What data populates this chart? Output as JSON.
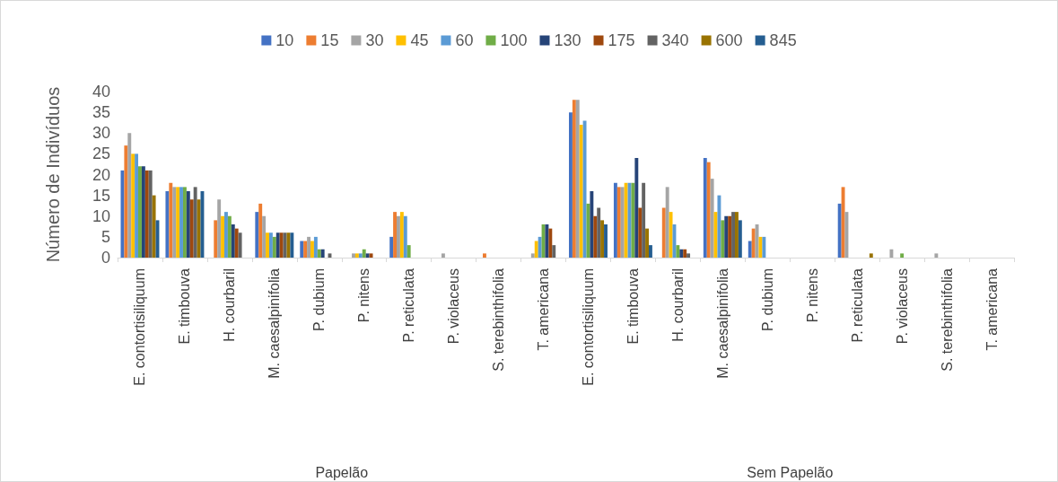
{
  "chart_data": {
    "type": "bar",
    "ylabel": "Número de Indivíduos",
    "categories": [
      "E. contortisiliquum",
      "E. timbouva",
      "H. courbaril",
      "M. caesalpinifolia",
      "P. dubium",
      "P. nitens",
      "P. reticulata",
      "P. violaceus",
      "S. terebinthifolia",
      "T. americana",
      "E. contortisiliquum",
      "E. timbouva",
      "H. courbaril",
      "M. caesalpinifolia",
      "P. dubium",
      "P. nitens",
      "P. reticulata",
      "P. violaceus",
      "S. terebinthifolia",
      "T. americana"
    ],
    "annotations": [
      "Papelão",
      "Sem Papelão"
    ],
    "series": [
      {
        "name": "10",
        "color": "#4472c4",
        "values": [
          21,
          16,
          0,
          11,
          4,
          0,
          5,
          0,
          0,
          0,
          35,
          18,
          0,
          24,
          4,
          0,
          13,
          0,
          0,
          0
        ]
      },
      {
        "name": "15",
        "color": "#ed7d31",
        "values": [
          27,
          18,
          9,
          13,
          4,
          0,
          11,
          0,
          1,
          0,
          38,
          17,
          12,
          23,
          7,
          0,
          17,
          0,
          0,
          0
        ]
      },
      {
        "name": "30",
        "color": "#a5a5a5",
        "values": [
          30,
          17,
          14,
          10,
          5,
          1,
          10,
          1,
          0,
          1,
          38,
          17,
          17,
          19,
          8,
          0,
          11,
          2,
          1,
          0
        ]
      },
      {
        "name": "45",
        "color": "#ffc000",
        "values": [
          25,
          17,
          10,
          6,
          4,
          1,
          11,
          0,
          0,
          4,
          32,
          18,
          11,
          11,
          5,
          0,
          0,
          0,
          0,
          0
        ]
      },
      {
        "name": "60",
        "color": "#5b9bd5",
        "values": [
          25,
          17,
          11,
          6,
          5,
          1,
          10,
          0,
          0,
          5,
          33,
          18,
          8,
          15,
          5,
          0,
          0,
          0,
          0,
          0
        ]
      },
      {
        "name": "100",
        "color": "#70ad47",
        "values": [
          22,
          17,
          10,
          5,
          2,
          2,
          3,
          0,
          0,
          8,
          13,
          18,
          3,
          9,
          0,
          0,
          0,
          1,
          0,
          0
        ]
      },
      {
        "name": "130",
        "color": "#264478",
        "values": [
          22,
          16,
          8,
          6,
          2,
          1,
          0,
          0,
          0,
          8,
          16,
          24,
          2,
          10,
          0,
          0,
          0,
          0,
          0,
          0
        ]
      },
      {
        "name": "175",
        "color": "#9e480e",
        "values": [
          21,
          14,
          7,
          6,
          0,
          1,
          0,
          0,
          0,
          7,
          10,
          12,
          2,
          10,
          0,
          0,
          0,
          0,
          0,
          0
        ]
      },
      {
        "name": "340",
        "color": "#636363",
        "values": [
          21,
          17,
          6,
          6,
          1,
          0,
          0,
          0,
          0,
          3,
          12,
          18,
          1,
          11,
          0,
          0,
          0,
          0,
          0,
          0
        ]
      },
      {
        "name": "600",
        "color": "#997300",
        "values": [
          15,
          14,
          0,
          6,
          0,
          0,
          0,
          0,
          0,
          0,
          9,
          7,
          0,
          11,
          0,
          0,
          1,
          0,
          0,
          0
        ]
      },
      {
        "name": "845",
        "color": "#255e91",
        "values": [
          9,
          16,
          0,
          6,
          0,
          0,
          0,
          0,
          0,
          0,
          8,
          3,
          0,
          9,
          0,
          0,
          0,
          0,
          0,
          0
        ]
      }
    ],
    "ylim": [
      0,
      40
    ],
    "yticks": [
      0,
      5,
      10,
      15,
      20,
      25,
      30,
      35,
      40
    ],
    "grid": false,
    "legend": "top"
  }
}
